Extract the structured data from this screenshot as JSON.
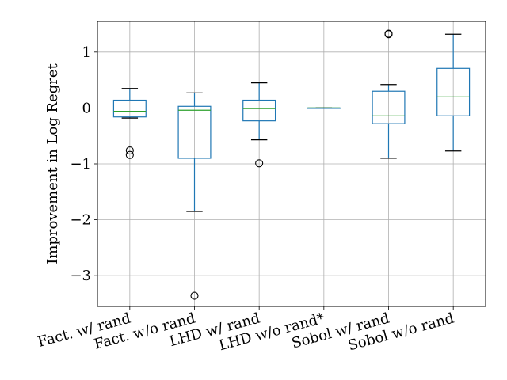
{
  "chart_data": {
    "type": "boxplot",
    "title": "",
    "xlabel": "",
    "ylabel": "Improvement in Log Regret",
    "ylim": [
      -3.55,
      1.55
    ],
    "yticks": [
      -3,
      -2,
      -1,
      0,
      1
    ],
    "ytick_labels": [
      "−3",
      "−2",
      "−1",
      "0",
      "1"
    ],
    "grid": true,
    "colors": {
      "box": "#1f77b4",
      "median": "#2ca02c",
      "whisker": "#1f77b4",
      "cap": "#000000",
      "flier": "#000000",
      "grid": "#b0b0b0"
    },
    "categories": [
      "Fact. w/ rand",
      "Fact. w/o rand",
      "LHD w/ rand",
      "LHD w/o rand*",
      "Sobol w/ rand",
      "Sobol w/o rand"
    ],
    "boxes": [
      {
        "whislo": -0.18,
        "q1": -0.16,
        "med": -0.06,
        "q3": 0.14,
        "whishi": 0.35,
        "fliers": [
          -0.76,
          -0.84
        ]
      },
      {
        "whislo": -1.85,
        "q1": -0.9,
        "med": -0.04,
        "q3": 0.03,
        "whishi": 0.27,
        "fliers": [
          -3.36
        ]
      },
      {
        "whislo": -0.57,
        "q1": -0.23,
        "med": -0.01,
        "q3": 0.14,
        "whishi": 0.45,
        "fliers": [
          -0.99
        ]
      },
      {
        "whislo": 0.0,
        "q1": 0.0,
        "med": 0.0,
        "q3": 0.0,
        "whishi": 0.0,
        "fliers": []
      },
      {
        "whislo": -0.9,
        "q1": -0.28,
        "med": -0.14,
        "q3": 0.3,
        "whishi": 0.42,
        "fliers": [
          1.32,
          1.33
        ]
      },
      {
        "whislo": -0.77,
        "q1": -0.14,
        "med": 0.2,
        "q3": 0.71,
        "whishi": 1.32,
        "fliers": []
      }
    ]
  }
}
